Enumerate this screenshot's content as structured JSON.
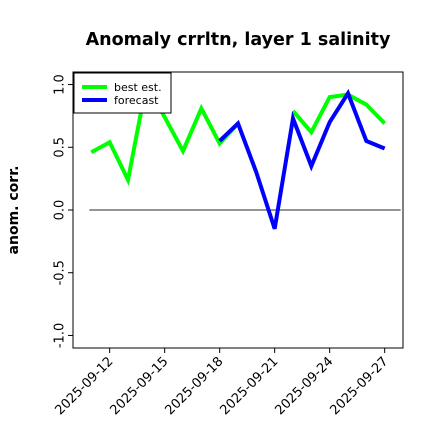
{
  "chart_data": {
    "type": "line",
    "title": "Anomaly crrltn, layer 1 salinity",
    "xlabel": "",
    "ylabel": "anom. corr.",
    "x": [
      "2025-09-11",
      "2025-09-12",
      "2025-09-13",
      "2025-09-14",
      "2025-09-15",
      "2025-09-16",
      "2025-09-17",
      "2025-09-18",
      "2025-09-19",
      "2025-09-20",
      "2025-09-21",
      "2025-09-22",
      "2025-09-23",
      "2025-09-24",
      "2025-09-25",
      "2025-09-26",
      "2025-09-27"
    ],
    "xticks": [
      "2025-09-12",
      "2025-09-15",
      "2025-09-18",
      "2025-09-21",
      "2025-09-24",
      "2025-09-27"
    ],
    "highlight_tick": "2025-09-18",
    "xlim": [
      "2025-09-10",
      "2025-09-28"
    ],
    "ylim": [
      -1.1,
      1.1
    ],
    "yticks": [
      "-1.0",
      "-0.5",
      "0.0",
      "0.5",
      "1.0"
    ],
    "reference_line": 0.0,
    "legend_position": "top-left",
    "series": [
      {
        "name": "best est.",
        "color": "#00ff00",
        "values": [
          0.46,
          0.54,
          0.24,
          1.0,
          0.74,
          0.47,
          0.81,
          0.53,
          0.69,
          null,
          null,
          0.79,
          0.62,
          0.9,
          0.92,
          0.84,
          0.69
        ]
      },
      {
        "name": "forecast",
        "color": "#0000ff",
        "values": [
          null,
          null,
          null,
          null,
          null,
          null,
          null,
          0.55,
          0.69,
          0.3,
          -0.15,
          0.73,
          0.35,
          0.7,
          0.93,
          0.55,
          0.49
        ]
      }
    ]
  }
}
